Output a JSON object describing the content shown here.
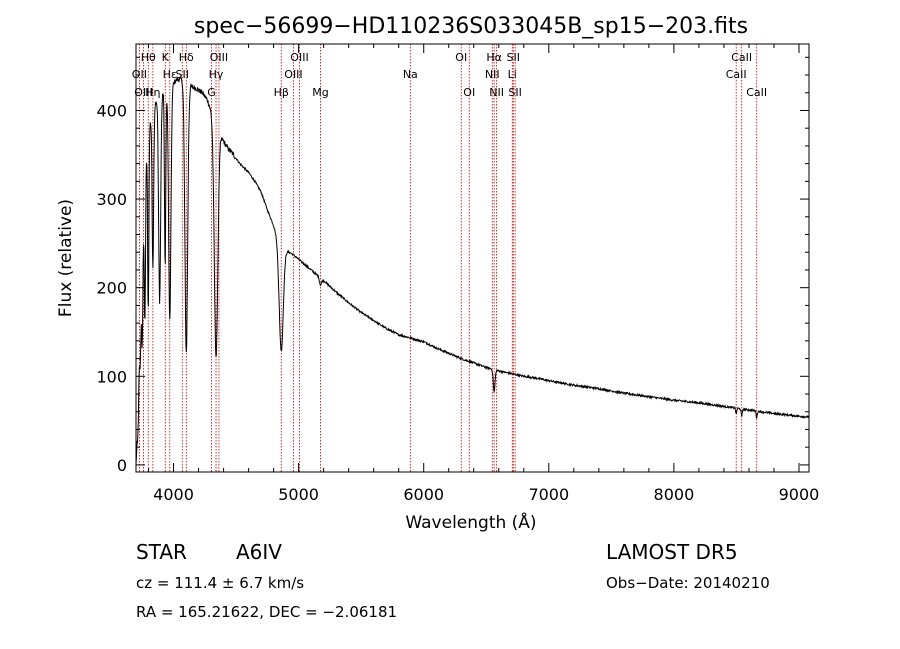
{
  "chart_data": {
    "type": "line",
    "title": "spec−56699−HD110236S033045B_sp15−203.fits",
    "xlabel": "Wavelength (Å)",
    "ylabel": "Flux (relative)",
    "xlim": [
      3700,
      9080
    ],
    "ylim": [
      -8,
      475
    ],
    "xticks": [
      4000,
      5000,
      6000,
      7000,
      8000,
      9000
    ],
    "yticks": [
      0,
      100,
      200,
      300,
      400
    ],
    "grid": false,
    "spectrum_anchors": [
      [
        3700,
        0
      ],
      [
        3712,
        40
      ],
      [
        3725,
        145
      ],
      [
        3740,
        195
      ],
      [
        3755,
        255
      ],
      [
        3770,
        330
      ],
      [
        3790,
        360
      ],
      [
        3810,
        385
      ],
      [
        3835,
        395
      ],
      [
        3860,
        410
      ],
      [
        3890,
        415
      ],
      [
        3920,
        420
      ],
      [
        3950,
        425
      ],
      [
        3990,
        430
      ],
      [
        4030,
        435
      ],
      [
        4080,
        435
      ],
      [
        4130,
        428
      ],
      [
        4180,
        425
      ],
      [
        4230,
        420
      ],
      [
        4270,
        412
      ],
      [
        4300,
        400
      ],
      [
        4330,
        385
      ],
      [
        4380,
        370
      ],
      [
        4430,
        358
      ],
      [
        4480,
        350
      ],
      [
        4530,
        340
      ],
      [
        4600,
        330
      ],
      [
        4650,
        320
      ],
      [
        4700,
        308
      ],
      [
        4750,
        288
      ],
      [
        4800,
        270
      ],
      [
        4840,
        252
      ],
      [
        4900,
        242
      ],
      [
        4950,
        238
      ],
      [
        5000,
        232
      ],
      [
        5100,
        220
      ],
      [
        5200,
        208
      ],
      [
        5300,
        195
      ],
      [
        5400,
        183
      ],
      [
        5500,
        172
      ],
      [
        5600,
        163
      ],
      [
        5700,
        154
      ],
      [
        5800,
        147
      ],
      [
        5900,
        143
      ],
      [
        6000,
        139
      ],
      [
        6100,
        132
      ],
      [
        6200,
        126
      ],
      [
        6300,
        120
      ],
      [
        6400,
        115
      ],
      [
        6500,
        110
      ],
      [
        6600,
        106
      ],
      [
        6700,
        103
      ],
      [
        6800,
        100
      ],
      [
        6900,
        98
      ],
      [
        7000,
        95
      ],
      [
        7200,
        90
      ],
      [
        7400,
        86
      ],
      [
        7600,
        81
      ],
      [
        7800,
        77
      ],
      [
        8000,
        73
      ],
      [
        8200,
        70
      ],
      [
        8400,
        66
      ],
      [
        8600,
        62
      ],
      [
        8800,
        58
      ],
      [
        9000,
        55
      ],
      [
        9080,
        54
      ]
    ],
    "absorption_features": [
      {
        "center": 3720,
        "depth": 40,
        "width": 6
      },
      {
        "center": 3734,
        "depth": 60,
        "width": 5
      },
      {
        "center": 3750,
        "depth": 100,
        "width": 5
      },
      {
        "center": 3771,
        "depth": 170,
        "width": 5
      },
      {
        "center": 3798,
        "depth": 195,
        "width": 5
      },
      {
        "center": 3835,
        "depth": 175,
        "width": 6
      },
      {
        "center": 3889,
        "depth": 230,
        "width": 8
      },
      {
        "center": 3933,
        "depth": 200,
        "width": 5
      },
      {
        "center": 3970,
        "depth": 265,
        "width": 9
      },
      {
        "center": 4102,
        "depth": 305,
        "width": 11
      },
      {
        "center": 4340,
        "depth": 260,
        "width": 14
      },
      {
        "center": 4861,
        "depth": 120,
        "width": 16
      },
      {
        "center": 5175,
        "depth": 8,
        "width": 8
      },
      {
        "center": 6563,
        "depth": 25,
        "width": 7
      },
      {
        "center": 8498,
        "depth": 7,
        "width": 4
      },
      {
        "center": 8542,
        "depth": 9,
        "width": 4
      },
      {
        "center": 8662,
        "depth": 8,
        "width": 4
      }
    ],
    "line_markers": [
      {
        "label": "Hθ",
        "x": 3798,
        "row": 1
      },
      {
        "label": "OII",
        "x": 3727,
        "row": 2
      },
      {
        "label": "OIII",
        "x": 3760,
        "row": 3
      },
      {
        "label": "Hη",
        "x": 3835,
        "row": 3
      },
      {
        "label": "K",
        "x": 3934,
        "row": 1
      },
      {
        "label": "Hε",
        "x": 3970,
        "row": 2
      },
      {
        "label": "SII",
        "x": 4070,
        "row": 2
      },
      {
        "label": "Hδ",
        "x": 4102,
        "row": 1
      },
      {
        "label": "OIII",
        "x": 4363,
        "row": 1
      },
      {
        "label": "Hγ",
        "x": 4340,
        "row": 2
      },
      {
        "label": "G",
        "x": 4304,
        "row": 3
      },
      {
        "label": "Hβ",
        "x": 4861,
        "row": 3
      },
      {
        "label": "OIII",
        "x": 5007,
        "row": 1
      },
      {
        "label": "OIII",
        "x": 4959,
        "row": 2
      },
      {
        "label": "Mg",
        "x": 5175,
        "row": 3
      },
      {
        "label": "Na",
        "x": 5893,
        "row": 2
      },
      {
        "label": "OI",
        "x": 6300,
        "row": 1
      },
      {
        "label": "OI",
        "x": 6364,
        "row": 3
      },
      {
        "label": "Hα",
        "x": 6563,
        "row": 1
      },
      {
        "label": "NII",
        "x": 6548,
        "row": 2
      },
      {
        "label": "NII",
        "x": 6583,
        "row": 3
      },
      {
        "label": "SII",
        "x": 6716,
        "row": 1
      },
      {
        "label": "Li",
        "x": 6708,
        "row": 2
      },
      {
        "label": "SII",
        "x": 6731,
        "row": 3
      },
      {
        "label": "CaII",
        "x": 8542,
        "row": 1
      },
      {
        "label": "CaII",
        "x": 8498,
        "row": 2
      },
      {
        "label": "CaII",
        "x": 8662,
        "row": 3
      }
    ]
  },
  "info": {
    "class_label": "STAR",
    "subclass": "A6IV",
    "survey": "LAMOST DR5",
    "cz_text": "cz = 111.4 ± 6.7 km/s",
    "obs_date_text": "Obs−Date: 20140210",
    "radec_text": "RA = 165.21622, DEC =  −2.06181"
  },
  "colors": {
    "spectrum": "#000000",
    "marker_line": "#cc0000",
    "marker_label": "#000000",
    "axes": "#000000"
  }
}
